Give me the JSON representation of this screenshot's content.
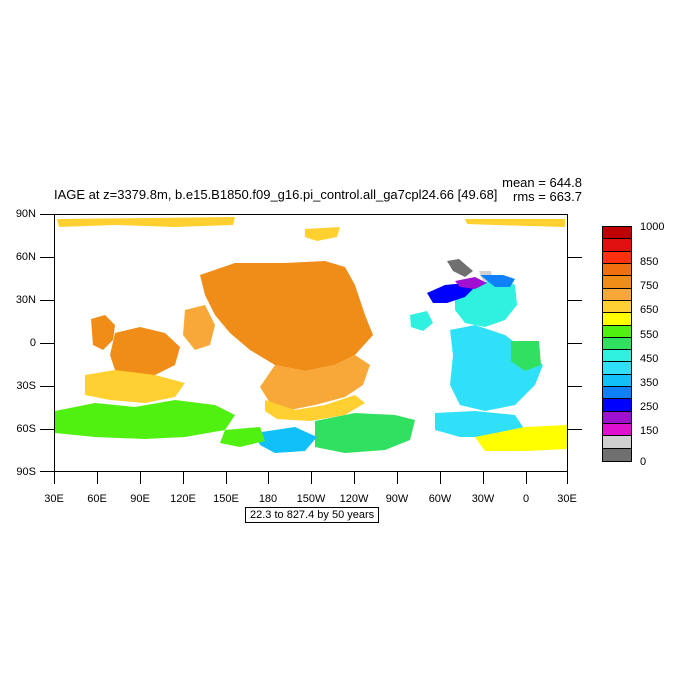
{
  "title": "IAGE at z=3379.8m, b.e15.B1850.f09_g16.pi_control.all_ga7cpl24.66 [49.68]",
  "stats": {
    "mean": "mean = 644.8",
    "rms": "rms = 663.7"
  },
  "y_axis_labels": [
    "90N",
    "60N",
    "30N",
    "0",
    "30S",
    "60S",
    "90S"
  ],
  "x_axis_labels": [
    "30E",
    "60E",
    "90E",
    "120E",
    "150E",
    "180",
    "150W",
    "120W",
    "90W",
    "60W",
    "30W",
    "0",
    "30E"
  ],
  "info_box": "22.3 to 827.4 by 50 years",
  "colorbar": {
    "labels": [
      "1000",
      "850",
      "750",
      "650",
      "550",
      "450",
      "350",
      "250",
      "150",
      "0"
    ],
    "colors_top_to_bottom": [
      "#c00000",
      "#e01010",
      "#ff3010",
      "#f07010",
      "#f08c18",
      "#f8a838",
      "#ffd030",
      "#ffff00",
      "#50f010",
      "#30e060",
      "#30f0e0",
      "#30e0f8",
      "#10c0f8",
      "#1080f8",
      "#0000ff",
      "#a010d0",
      "#e010d0",
      "#d0d0d0",
      "#707070"
    ]
  },
  "chart_data": {
    "type": "heatmap",
    "title": "IAGE at z=3379.8m, b.e15.B1850.f09_g16.pi_control.all_ga7cpl24.66 [49.68]",
    "variable": "IAGE",
    "depth": "z=3379.8m",
    "units": "years",
    "contour_min": 22.3,
    "contour_max": 827.4,
    "contour_interval": 50,
    "mean": 644.8,
    "rms": 663.7,
    "lon_range": [
      "30E",
      "30E"
    ],
    "lat_range": [
      "90S",
      "90N"
    ],
    "regions": [
      {
        "region": "North Pacific",
        "approx_value": 800
      },
      {
        "region": "Tropical & South Pacific",
        "approx_value": 750
      },
      {
        "region": "Indian Ocean",
        "approx_value": 750
      },
      {
        "region": "Southern Ocean (Indian/Pacific)",
        "approx_value": 600
      },
      {
        "region": "South Atlantic",
        "approx_value": 450
      },
      {
        "region": "North Atlantic / Labrador Sea",
        "approx_value": 250
      },
      {
        "region": "Weddell Sea",
        "approx_value": 650
      },
      {
        "region": "Arctic",
        "approx_value": 700
      }
    ]
  }
}
